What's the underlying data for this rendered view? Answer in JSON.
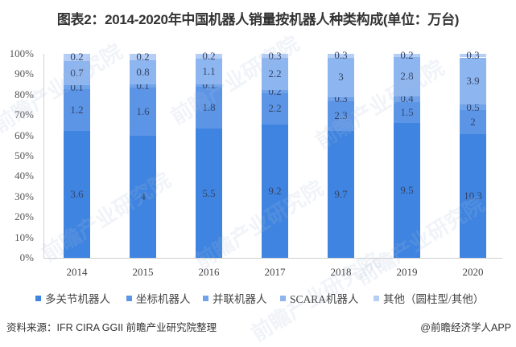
{
  "title": "图表2：2014-2020年中国机器人销量按机器人种类构成(单位：万台)",
  "y_ticks": [
    "100%",
    "90%",
    "80%",
    "70%",
    "60%",
    "50%",
    "40%",
    "30%",
    "20%",
    "10%",
    "0%"
  ],
  "legend": [
    {
      "label": "多关节机器人",
      "color": "#3f84e0"
    },
    {
      "label": "坐标机器人",
      "color": "#5c95e6"
    },
    {
      "label": "并联机器人",
      "color": "#70a3ea"
    },
    {
      "label": "SCARA机器人",
      "color": "#8db5ef"
    },
    {
      "label": "其他（圆柱型/其他）",
      "color": "#b5cef5"
    }
  ],
  "source": "资料来源：IFR CIRA GGII 前瞻产业研究院整理",
  "credit": "@前瞻经济学人APP",
  "watermark": "前瞻产业研究院",
  "chart_data": {
    "type": "bar",
    "stacked": "percent",
    "title": "图表2：2014-2020年中国机器人销量按机器人种类构成(单位：万台)",
    "xlabel": "",
    "ylabel": "",
    "ylim": [
      0,
      100
    ],
    "y_tick_labels": [
      "0%",
      "10%",
      "20%",
      "30%",
      "40%",
      "50%",
      "60%",
      "70%",
      "80%",
      "90%",
      "100%"
    ],
    "grid": false,
    "legend_position": "bottom",
    "categories": [
      "2014",
      "2015",
      "2016",
      "2017",
      "2018",
      "2019",
      "2020"
    ],
    "series": [
      {
        "name": "多关节机器人",
        "values": [
          3.6,
          4,
          5.5,
          9.2,
          9.7,
          9.5,
          10.3
        ]
      },
      {
        "name": "坐标机器人",
        "values": [
          1.2,
          1.6,
          1.8,
          2.2,
          2.3,
          1.5,
          2
        ]
      },
      {
        "name": "并联机器人",
        "values": [
          0.1,
          0.1,
          0.1,
          0.2,
          0.3,
          0.4,
          0.5
        ]
      },
      {
        "name": "SCARA机器人",
        "values": [
          0.7,
          0.8,
          1.1,
          2.2,
          3,
          2.8,
          3.9
        ]
      },
      {
        "name": "其他（圆柱型/其他）",
        "values": [
          0.2,
          0.2,
          0.2,
          0.3,
          0.3,
          0.2,
          0.3
        ]
      }
    ]
  }
}
